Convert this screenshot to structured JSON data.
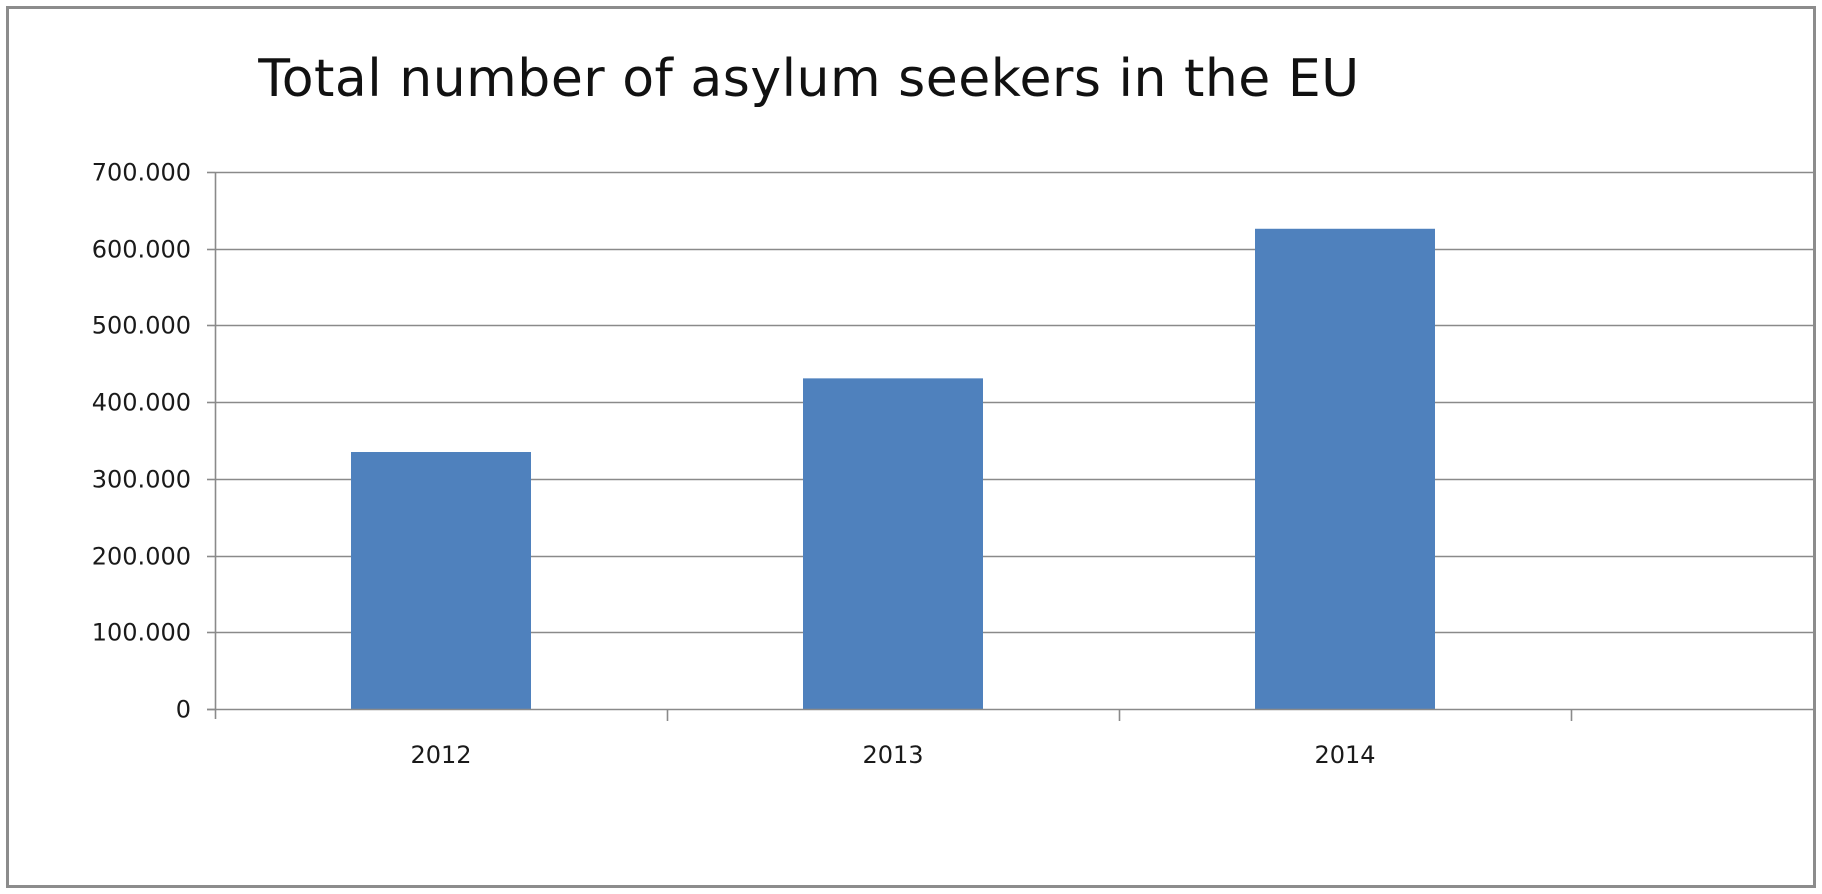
{
  "chart_data": {
    "type": "bar",
    "title": "Total number of asylum seekers in the EU",
    "xlabel": "",
    "ylabel": "",
    "categories": [
      "2012",
      "2013",
      "2014"
    ],
    "values": [
      335000,
      431000,
      626000
    ],
    "ylim": [
      0,
      700000
    ],
    "ytick_values": [
      0,
      100000,
      200000,
      300000,
      400000,
      500000,
      600000,
      700000
    ],
    "ytick_labels": [
      "0",
      "100.000",
      "200.000",
      "300.000",
      "400.000",
      "500.000",
      "600.000",
      "700.000"
    ],
    "grid": true,
    "legend": "none",
    "bar_color": "#4f81bd"
  }
}
